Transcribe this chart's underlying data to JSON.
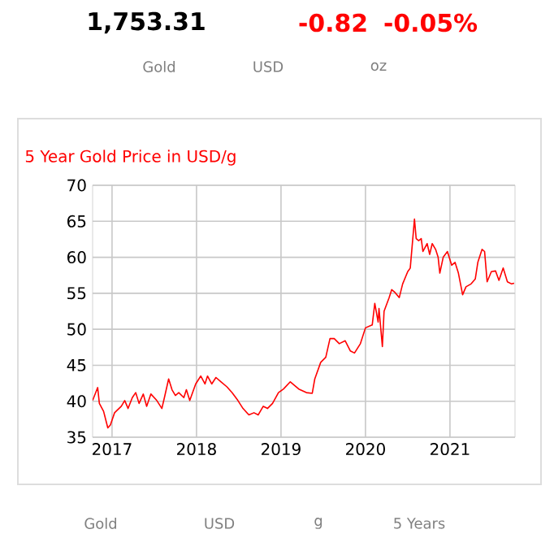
{
  "chart_data": {
    "type": "line",
    "title": "5 Year Gold Price in USD/g",
    "annotations": [
      "1,753.31",
      "-0.82",
      "-0.05%",
      "Gold",
      "USD",
      "oz",
      "Gold",
      "USD",
      "g",
      "5 Years"
    ],
    "xlim": [
      2016.77,
      2021.77
    ],
    "xticks": [
      2017,
      2018,
      2019,
      2020,
      2021
    ],
    "ylim": [
      35,
      70
    ],
    "yticks": [
      35,
      40,
      45,
      50,
      55,
      60,
      65,
      70
    ],
    "grid": true,
    "marker": "none",
    "line_style": "solid",
    "series": [
      {
        "color": "#ff0000",
        "x": [
          2016.77,
          2016.83,
          2016.85,
          2016.9,
          2016.95,
          2016.98,
          2017.03,
          2017.11,
          2017.15,
          2017.19,
          2017.24,
          2017.28,
          2017.32,
          2017.37,
          2017.41,
          2017.46,
          2017.53,
          2017.59,
          2017.62,
          2017.67,
          2017.71,
          2017.75,
          2017.79,
          2017.85,
          2017.88,
          2017.92,
          2017.99,
          2018.05,
          2018.1,
          2018.13,
          2018.18,
          2018.23,
          2018.29,
          2018.36,
          2018.42,
          2018.49,
          2018.55,
          2018.62,
          2018.68,
          2018.73,
          2018.79,
          2018.84,
          2018.9,
          2018.97,
          2019.03,
          2019.11,
          2019.21,
          2019.3,
          2019.37,
          2019.4,
          2019.47,
          2019.53,
          2019.58,
          2019.63,
          2019.69,
          2019.76,
          2019.82,
          2019.87,
          2019.94,
          2020.0,
          2020.08,
          2020.11,
          2020.15,
          2020.16,
          2020.2,
          2020.22,
          2020.28,
          2020.31,
          2020.35,
          2020.4,
          2020.44,
          2020.5,
          2020.53,
          2020.58,
          2020.6,
          2020.63,
          2020.66,
          2020.68,
          2020.73,
          2020.76,
          2020.79,
          2020.83,
          2020.86,
          2020.88,
          2020.92,
          2020.97,
          2021.02,
          2021.06,
          2021.1,
          2021.15,
          2021.19,
          2021.25,
          2021.3,
          2021.33,
          2021.38,
          2021.41,
          2021.44,
          2021.49,
          2021.54,
          2021.58,
          2021.63,
          2021.68,
          2021.73,
          2021.76
        ],
        "values": [
          40.1,
          41.9,
          39.7,
          38.6,
          36.3,
          36.7,
          38.4,
          39.3,
          40.1,
          39.0,
          40.5,
          41.2,
          39.7,
          41.0,
          39.3,
          41.0,
          40.1,
          39.0,
          40.5,
          43.1,
          41.6,
          40.8,
          41.2,
          40.5,
          41.6,
          40.1,
          42.4,
          43.5,
          42.4,
          43.5,
          42.4,
          43.3,
          42.7,
          42.0,
          41.2,
          40.1,
          39.0,
          38.1,
          38.4,
          38.1,
          39.3,
          39.0,
          39.7,
          41.2,
          41.7,
          42.7,
          41.7,
          41.2,
          41.1,
          43.1,
          45.4,
          46.1,
          48.7,
          48.7,
          48.0,
          48.4,
          47.0,
          46.7,
          48.0,
          50.2,
          50.6,
          53.6,
          51.0,
          52.9,
          47.6,
          52.5,
          54.4,
          55.5,
          55.1,
          54.4,
          56.3,
          58.0,
          58.5,
          65.3,
          62.6,
          62.3,
          62.6,
          60.8,
          61.9,
          60.4,
          61.9,
          61.1,
          60.0,
          57.8,
          60.0,
          60.8,
          58.9,
          59.3,
          57.8,
          54.8,
          55.9,
          56.3,
          57.0,
          59.3,
          61.1,
          60.8,
          56.6,
          58.0,
          58.1,
          56.8,
          58.5,
          56.6,
          56.3,
          56.4
        ]
      }
    ]
  }
}
